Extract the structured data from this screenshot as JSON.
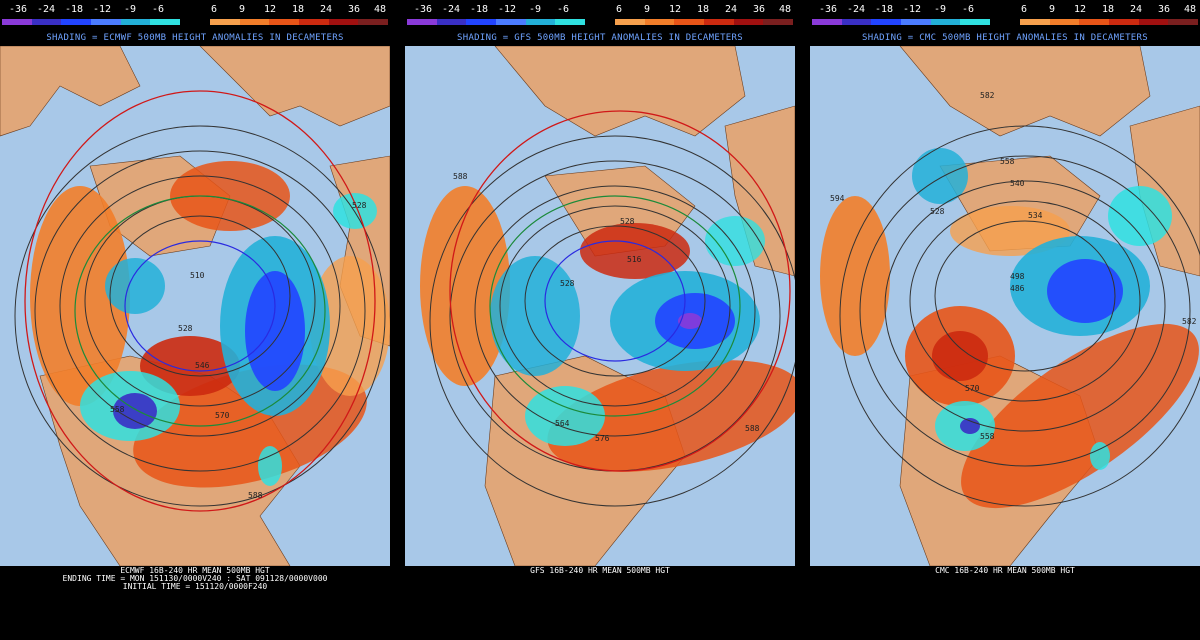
{
  "colorbar": {
    "labels": [
      "-36",
      "-24",
      "-18",
      "-12",
      "-9",
      "-6",
      "6",
      "9",
      "12",
      "18",
      "24",
      "36",
      "48"
    ],
    "colors": [
      "#8a3ad8",
      "#3a2fc4",
      "#2244ff",
      "#4b7cff",
      "#23b0d8",
      "#2fe0e0",
      "#000000",
      "#f6a04d",
      "#f27e2a",
      "#e85518",
      "#cc2a10",
      "#a01010",
      "#7a1f1f"
    ]
  },
  "panels": [
    {
      "model": "ECMWF",
      "shading": "SHADING = ECMWF 500MB HEIGHT ANOMALIES IN DECAMETERS",
      "captions": [
        "ECMWF 16B-240 HR MEAN 500MB HGT",
        "ENDING TIME = MON 151130/0000V240 : SAT 091128/0000V000",
        "INITIAL TIME = 151120/0000F240"
      ],
      "contour_labels": [
        "510",
        "528",
        "546",
        "558",
        "570",
        "588",
        "528"
      ]
    },
    {
      "model": "GFS",
      "shading": "SHADING = GFS 500MB HEIGHT ANOMALIES IN DECAMETERS",
      "captions": [
        "GFS 16B-240 HR MEAN 500MB HGT"
      ],
      "contour_labels": [
        "588",
        "528",
        "516",
        "564",
        "576",
        "588",
        "528"
      ]
    },
    {
      "model": "CMC",
      "shading": "SHADING = CMC 500MB HEIGHT ANOMALIES IN DECAMETERS",
      "captions": [
        "CMC 16B-240 HR MEAN 500MB HGT"
      ],
      "contour_labels": [
        "582",
        "594",
        "558",
        "540",
        "534",
        "528",
        "498",
        "486",
        "570",
        "558",
        "582"
      ]
    }
  ]
}
